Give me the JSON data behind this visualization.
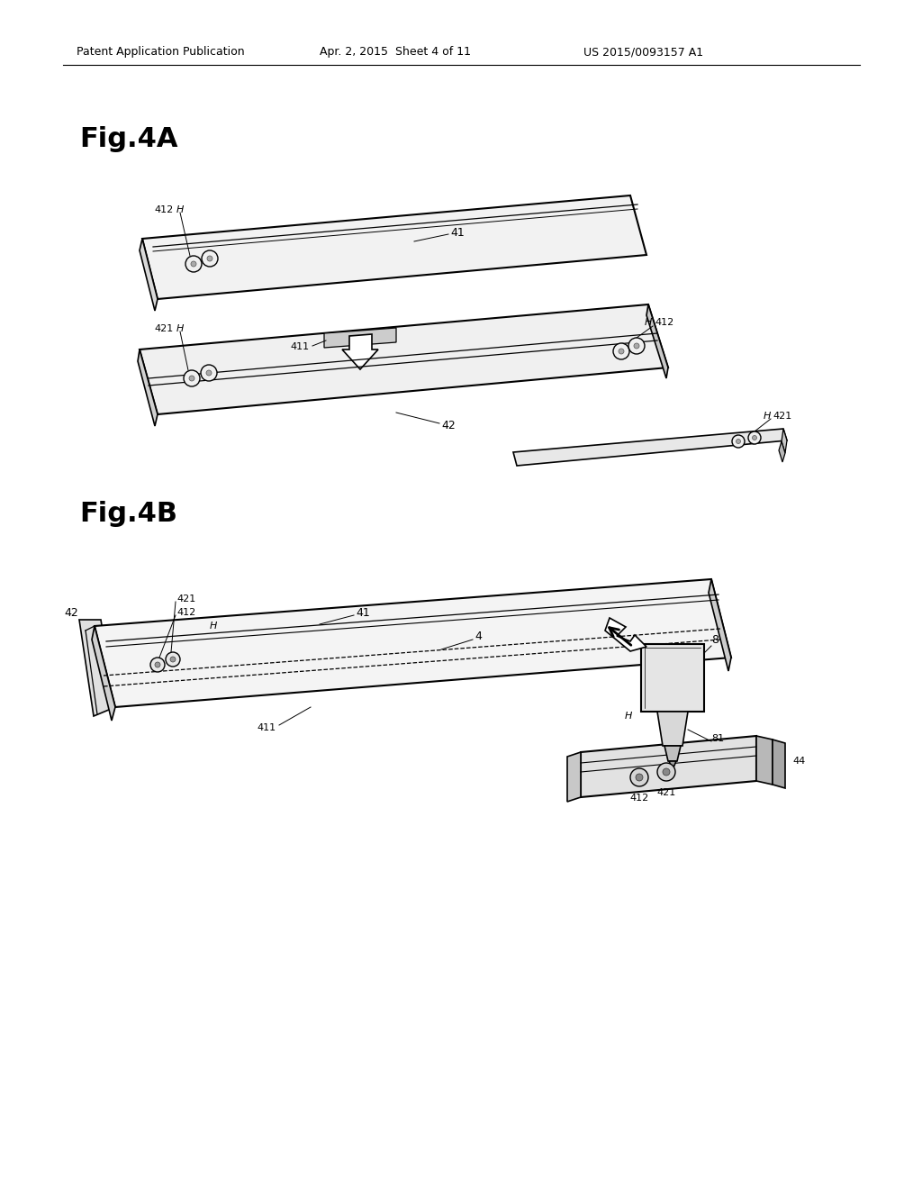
{
  "bg_color": "#ffffff",
  "header_left": "Patent Application Publication",
  "header_center": "Apr. 2, 2015  Sheet 4 of 11",
  "header_right": "US 2015/0093157 A1",
  "fig4a_label": "Fig.4A",
  "fig4b_label": "Fig.4B"
}
